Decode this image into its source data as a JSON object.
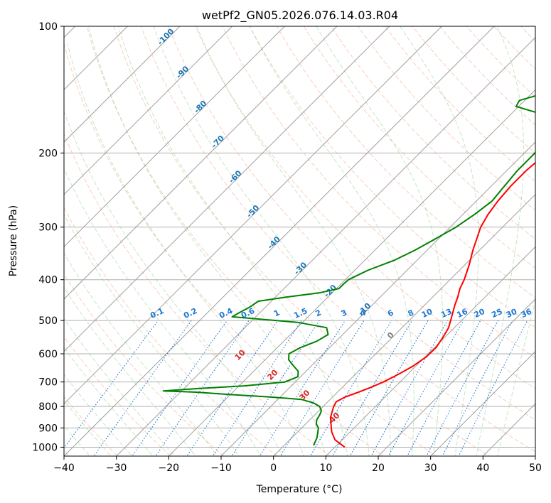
{
  "chart_data": {
    "type": "line",
    "title": "wetPf2_GN05.2026.076.14.03.R04",
    "xlabel": "Temperature (°C)",
    "ylabel": "Pressure (hPa)",
    "xlim": [
      -40,
      50
    ],
    "ylim": [
      1050,
      100
    ],
    "y_scale": "log",
    "grid": true,
    "x_ticks": [
      "−40",
      "−30",
      "−20",
      "−10",
      "0",
      "10",
      "20",
      "30",
      "40",
      "50"
    ],
    "y_ticks": [
      {
        "p": 1000,
        "label": "1000"
      },
      {
        "p": 900,
        "label": "900"
      },
      {
        "p": 800,
        "label": "800"
      },
      {
        "p": 700,
        "label": "700"
      },
      {
        "p": 600,
        "label": "600"
      },
      {
        "p": 500,
        "label": "500"
      },
      {
        "p": 400,
        "label": "400"
      },
      {
        "p": 300,
        "label": "300"
      },
      {
        "p": 200,
        "label": "200"
      },
      {
        "p": 100,
        "label": "100"
      }
    ],
    "colors": {
      "temperature": "#ff0000",
      "dewpoint": "#008000",
      "isotherm": "#a0a0a0",
      "dry_adiabat": "#f4a582",
      "moist_adiabat": "#98d098",
      "mixing_ratio": "#1e78d2",
      "isotherm_label": "#1f77b4",
      "dry_label": "#d62728",
      "grid": "#b0b0b0"
    },
    "series": [
      {
        "key": "temperature",
        "points": [
          [
            1000,
            11.9
          ],
          [
            960,
            8.6
          ],
          [
            920,
            6.5
          ],
          [
            880,
            4.8
          ],
          [
            850,
            3.5
          ],
          [
            800,
            2.0
          ],
          [
            780,
            1.6
          ],
          [
            760,
            2.4
          ],
          [
            740,
            4.0
          ],
          [
            720,
            5.5
          ],
          [
            700,
            6.8
          ],
          [
            680,
            7.8
          ],
          [
            660,
            8.7
          ],
          [
            640,
            9.5
          ],
          [
            610,
            10.2
          ],
          [
            580,
            10.3
          ],
          [
            550,
            9.7
          ],
          [
            520,
            8.9
          ],
          [
            490,
            7.4
          ],
          [
            460,
            5.8
          ],
          [
            440,
            4.8
          ],
          [
            420,
            3.6
          ],
          [
            400,
            2.7
          ],
          [
            370,
            0.9
          ],
          [
            340,
            -1.3
          ],
          [
            320,
            -2.7
          ],
          [
            300,
            -4.2
          ],
          [
            280,
            -5.2
          ],
          [
            260,
            -5.9
          ],
          [
            240,
            -6.3
          ],
          [
            220,
            -6.3
          ],
          [
            205,
            -5.9
          ],
          [
            195,
            -4.8
          ],
          [
            185,
            -1.8
          ],
          [
            175,
            0.2
          ],
          [
            165,
            3.5
          ],
          [
            155,
            7.2
          ],
          [
            145,
            10.8
          ],
          [
            135,
            13.8
          ],
          [
            125,
            15.6
          ],
          [
            115,
            17.3
          ],
          [
            108,
            19.3
          ],
          [
            100,
            22.5
          ]
        ]
      },
      {
        "key": "dewpoint",
        "points": [
          [
            990,
            5.6
          ],
          [
            950,
            4.8
          ],
          [
            900,
            3.2
          ],
          [
            880,
            2.0
          ],
          [
            860,
            1.3
          ],
          [
            840,
            1.0
          ],
          [
            820,
            0.5
          ],
          [
            800,
            -0.7
          ],
          [
            785,
            -2.5
          ],
          [
            770,
            -5.5
          ],
          [
            760,
            -12.0
          ],
          [
            750,
            -20.0
          ],
          [
            740,
            -27.0
          ],
          [
            735,
            -33.5
          ],
          [
            725,
            -27.0
          ],
          [
            715,
            -19.0
          ],
          [
            700,
            -12.0
          ],
          [
            680,
            -10.5
          ],
          [
            660,
            -11.5
          ],
          [
            640,
            -13.5
          ],
          [
            620,
            -15.5
          ],
          [
            600,
            -16.6
          ],
          [
            580,
            -15.6
          ],
          [
            560,
            -13.7
          ],
          [
            540,
            -12.8
          ],
          [
            520,
            -14.4
          ],
          [
            505,
            -21.0
          ],
          [
            495,
            -30.0
          ],
          [
            490,
            -34.5
          ],
          [
            480,
            -34.0
          ],
          [
            465,
            -33.0
          ],
          [
            450,
            -32.5
          ],
          [
            440,
            -28.0
          ],
          [
            430,
            -22.5
          ],
          [
            420,
            -19.5
          ],
          [
            410,
            -19.5
          ],
          [
            400,
            -19.4
          ],
          [
            380,
            -17.5
          ],
          [
            360,
            -14.4
          ],
          [
            340,
            -12.3
          ],
          [
            320,
            -10.6
          ],
          [
            300,
            -8.9
          ],
          [
            280,
            -7.8
          ],
          [
            260,
            -7.0
          ],
          [
            240,
            -7.5
          ],
          [
            220,
            -8.0
          ],
          [
            200,
            -8.0
          ],
          [
            180,
            -9.6
          ],
          [
            170,
            -12.7
          ],
          [
            160,
            -15.7
          ],
          [
            155,
            -20.5
          ],
          [
            150,
            -21.0
          ],
          [
            145,
            -18.0
          ],
          [
            140,
            -14.5
          ],
          [
            130,
            -11.5
          ],
          [
            120,
            -8.0
          ],
          [
            110,
            -6.0
          ],
          [
            100,
            -3.5
          ]
        ]
      }
    ],
    "isotherm_labels": [
      "-100",
      "-90",
      "-80",
      "-70",
      "-60",
      "-50",
      "-40",
      "-30",
      "-20",
      "-10",
      "0"
    ],
    "dry_adiabat_labels": [
      "10",
      "20",
      "30",
      "40"
    ],
    "mixing_ratio_labels": [
      "0.1",
      "0.2",
      "0.4",
      "0.6",
      "1",
      "1.5",
      "2",
      "3",
      "4",
      "6",
      "8",
      "10",
      "13",
      "16",
      "20",
      "25",
      "30",
      "36"
    ],
    "mixing_ratio_values": [
      0.1,
      0.2,
      0.4,
      0.6,
      1,
      1.5,
      2,
      3,
      4,
      6,
      8,
      10,
      13,
      16,
      20,
      25,
      30,
      36
    ]
  }
}
